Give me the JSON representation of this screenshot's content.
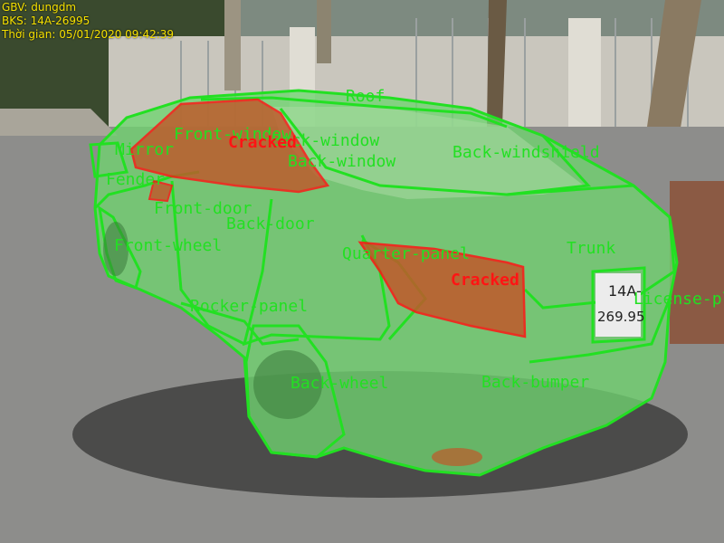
{
  "overlay": {
    "teacher": "GBV: dungdm",
    "plate_info": "BKS: 14A-26995",
    "timestamp": "Thời gian: 05/01/2020 09:42:39"
  },
  "parts": {
    "roof": "Roof",
    "front_window": "Front-window",
    "back_window_a": "Back-window",
    "back_window_b": "Back-window",
    "back_windshield": "Back-windshield",
    "mirror": "Mirror",
    "fender": "Fender",
    "front_door": "Front-door",
    "back_door": "Back-door",
    "front_wheel": "Front-wheel",
    "quarter_panel": "Quarter-panel",
    "trunk": "Trunk",
    "license_plate": "License-plate",
    "rocker_panel": "Rocker-panel",
    "back_wheel": "Back-wheel",
    "back_bumper": "Back-bumper"
  },
  "damages": {
    "window_damage": "Cracked",
    "lamp_damage": "Cracked"
  },
  "plate": {
    "line1": "14A-",
    "line2": "269.95"
  },
  "colors": {
    "part_outline": "#22e022",
    "part_fill": "#6fd36f",
    "damage_outline": "#ff1414",
    "damage_fill": "#c0582a",
    "hud_text": "#f5e000"
  }
}
